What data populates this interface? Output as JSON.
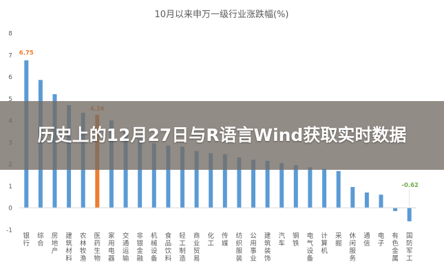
{
  "banner": {
    "text": "历史上的12月27日与R语言Wind获取实时数据"
  },
  "chart_data": {
    "type": "bar",
    "title": "10月以来申万一级行业涨跌幅(%)",
    "xlabel": "",
    "ylabel": "",
    "ylim": [
      -1,
      8
    ],
    "yticks": [
      -1,
      0,
      1,
      2,
      3,
      4,
      5,
      6,
      7,
      8
    ],
    "grid": false,
    "legend": "none",
    "categories": [
      "银行",
      "综合",
      "房地产",
      "建筑材料",
      "农林牧渔",
      "医药生物",
      "家用电器",
      "交通运输",
      "非银金融",
      "机械设备",
      "食品饮料",
      "轻工制造",
      "商业贸易",
      "化工",
      "传媒",
      "纺织服装",
      "公用事业",
      "建筑装饰",
      "汽车",
      "钢铁",
      "电气设备",
      "计算机",
      "采掘",
      "休闲服务",
      "通信",
      "电子",
      "有色金属",
      "国防军工"
    ],
    "values": [
      6.75,
      5.85,
      5.2,
      4.7,
      4.35,
      4.26,
      4.0,
      3.6,
      3.15,
      2.95,
      2.85,
      2.8,
      2.6,
      2.5,
      2.45,
      2.3,
      2.2,
      2.15,
      2.05,
      1.95,
      1.85,
      1.78,
      1.68,
      0.95,
      0.7,
      0.6,
      -0.15,
      -0.62
    ],
    "data_labels": [
      {
        "index": 0,
        "text": "6.75"
      },
      {
        "index": 5,
        "text": "4.26"
      },
      {
        "index": 27,
        "text": "-0.62"
      }
    ],
    "colors": {
      "bar": "#5B9BD5",
      "highlight_bar": "#ED7D31",
      "highlight_index": 5,
      "first_label": "#ED7D31",
      "highlight_label": "#ED7D31",
      "last_label": "#70AD47",
      "text": "#595959",
      "axis": "#D9D9D9"
    }
  }
}
